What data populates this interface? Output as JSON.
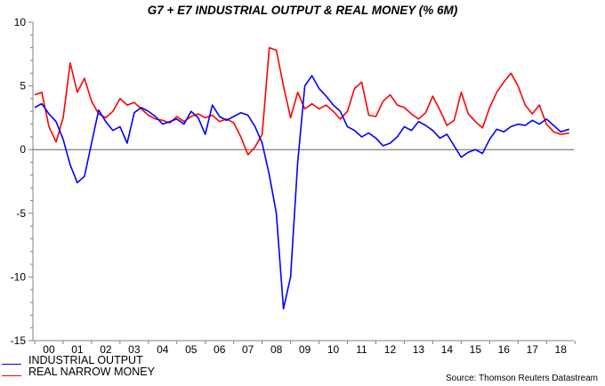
{
  "title": "G7 + E7 INDUSTRIAL OUTPUT & REAL MONEY (% 6M)",
  "source": "Source: Thomson Reuters Datastream",
  "colors": {
    "industrial_output": "#0000ff",
    "real_narrow_money": "#ff0000",
    "axis": "#808080",
    "zero_line": "#606060"
  },
  "legend": [
    {
      "label": "INDUSTRIAL OUTPUT",
      "color": "#0000ff"
    },
    {
      "label": "REAL NARROW MONEY",
      "color": "#ff0000"
    }
  ],
  "chart_data": {
    "type": "line",
    "title": "G7 + E7 INDUSTRIAL OUTPUT & REAL MONEY (% 6M)",
    "xlabel": "",
    "ylabel": "",
    "ylim": [
      -15,
      10
    ],
    "yticks": [
      10,
      5,
      0,
      -5,
      -10,
      -15
    ],
    "xlim": [
      2000,
      2018.9
    ],
    "xtick_labels": [
      "00",
      "01",
      "02",
      "03",
      "04",
      "05",
      "06",
      "07",
      "08",
      "09",
      "10",
      "11",
      "12",
      "13",
      "14",
      "15",
      "16",
      "17",
      "18"
    ],
    "grid": false,
    "zero_line": true,
    "legend_position": "bottom-left",
    "x": [
      2000.0,
      2000.25,
      2000.5,
      2000.75,
      2001.0,
      2001.25,
      2001.5,
      2001.75,
      2002.0,
      2002.25,
      2002.5,
      2002.75,
      2003.0,
      2003.25,
      2003.5,
      2003.75,
      2004.0,
      2004.25,
      2004.5,
      2004.75,
      2005.0,
      2005.25,
      2005.5,
      2005.75,
      2006.0,
      2006.25,
      2006.5,
      2006.75,
      2007.0,
      2007.25,
      2007.5,
      2007.75,
      2008.0,
      2008.25,
      2008.5,
      2008.75,
      2009.0,
      2009.25,
      2009.5,
      2009.75,
      2010.0,
      2010.25,
      2010.5,
      2010.75,
      2011.0,
      2011.25,
      2011.5,
      2011.75,
      2012.0,
      2012.25,
      2012.5,
      2012.75,
      2013.0,
      2013.25,
      2013.5,
      2013.75,
      2014.0,
      2014.25,
      2014.5,
      2014.75,
      2015.0,
      2015.25,
      2015.5,
      2015.75,
      2016.0,
      2016.25,
      2016.5,
      2016.75,
      2017.0,
      2017.25,
      2017.5,
      2017.75,
      2018.0,
      2018.25,
      2018.5,
      2018.8
    ],
    "series": [
      {
        "name": "INDUSTRIAL OUTPUT",
        "color": "#0000ff",
        "values": [
          3.3,
          3.6,
          2.8,
          2.2,
          0.8,
          -1.2,
          -2.6,
          -2.1,
          0.5,
          3.1,
          2.2,
          1.5,
          1.8,
          0.5,
          2.9,
          3.3,
          3.0,
          2.6,
          2.0,
          2.2,
          2.4,
          2.0,
          3.0,
          2.5,
          1.2,
          3.5,
          2.6,
          2.3,
          2.6,
          2.9,
          2.7,
          1.8,
          0.5,
          -2.0,
          -5.0,
          -12.5,
          -10.0,
          -1.0,
          5.0,
          5.8,
          4.8,
          4.2,
          3.5,
          3.0,
          1.8,
          1.5,
          1.0,
          1.3,
          0.9,
          0.3,
          0.5,
          1.0,
          1.8,
          1.5,
          2.2,
          1.9,
          1.5,
          0.9,
          1.2,
          0.3,
          -0.6,
          -0.2,
          0.0,
          -0.3,
          0.8,
          1.6,
          1.4,
          1.8,
          2.0,
          1.9,
          2.3,
          2.0,
          2.4,
          1.9,
          1.4,
          1.6
        ]
      },
      {
        "name": "REAL NARROW MONEY",
        "color": "#ff0000",
        "values": [
          4.3,
          4.5,
          1.8,
          0.6,
          2.5,
          6.8,
          4.5,
          5.6,
          3.8,
          2.8,
          2.5,
          3.0,
          4.0,
          3.5,
          3.7,
          3.2,
          2.7,
          2.4,
          2.3,
          2.1,
          2.6,
          2.2,
          2.6,
          2.8,
          2.5,
          2.7,
          2.2,
          2.4,
          2.1,
          1.0,
          -0.4,
          0.2,
          1.2,
          8.0,
          7.8,
          5.0,
          2.5,
          4.5,
          3.2,
          3.6,
          3.2,
          3.5,
          3.0,
          2.4,
          3.0,
          4.8,
          5.3,
          2.7,
          2.6,
          3.8,
          4.3,
          3.5,
          3.3,
          2.8,
          2.4,
          2.9,
          4.2,
          3.1,
          1.9,
          2.3,
          4.5,
          2.8,
          2.2,
          1.7,
          3.3,
          4.5,
          5.3,
          6.0,
          5.0,
          3.5,
          2.8,
          3.5,
          2.0,
          1.4,
          1.2,
          1.3
        ]
      }
    ]
  }
}
